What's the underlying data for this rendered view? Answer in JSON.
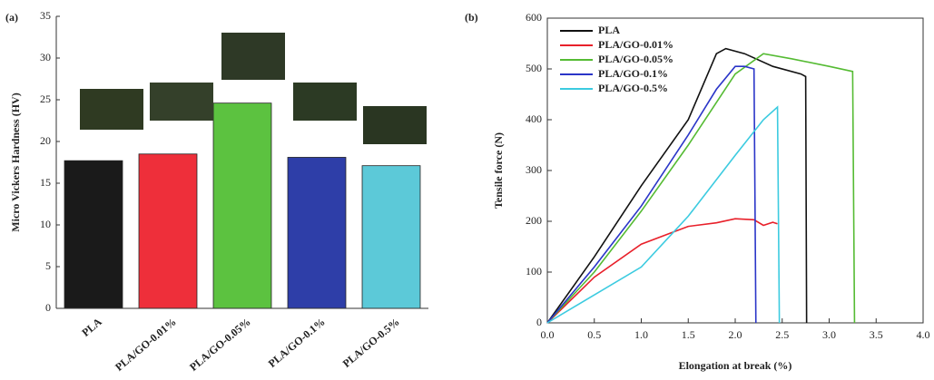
{
  "chart_data": [
    {
      "type": "bar",
      "panel": "(a)",
      "ylabel": "Micro Vickers Hardness (HV)",
      "categories": [
        "PLA",
        "PLA/GO-0.01%",
        "PLA/GO-0.05%",
        "PLA/GO-0.1%",
        "PLA/GO-0.5%"
      ],
      "values": [
        17.7,
        18.5,
        24.6,
        18.1,
        17.1
      ],
      "colors": [
        "#1a1a1a",
        "#ee2f3a",
        "#5cc240",
        "#2e3ea8",
        "#5cc9d8"
      ],
      "ylim": [
        0,
        35
      ],
      "yticks": [
        0,
        5,
        10,
        15,
        20,
        25,
        30,
        35
      ]
    },
    {
      "type": "line",
      "panel": "(b)",
      "xlabel": "Elongation at break (%)",
      "ylabel": "Tensile force (N)",
      "xlim": [
        0,
        4
      ],
      "xticks": [
        {
          "value": 0,
          "label": "0.0"
        },
        0.5,
        {
          "value": 1,
          "label": "1.0"
        },
        1.5,
        {
          "value": 2,
          "label": "2.0"
        },
        2.5,
        {
          "value": 3,
          "label": "3.0"
        },
        3.5,
        {
          "value": 4,
          "label": "4.0"
        }
      ],
      "ylim": [
        0,
        600
      ],
      "yticks": [
        0,
        100,
        200,
        300,
        400,
        500,
        600
      ],
      "legend": "upper left",
      "series": [
        {
          "name": "PLA",
          "color": "#111111",
          "x": [
            0,
            0.5,
            1,
            1.5,
            1.8,
            1.9,
            2.1,
            2.4,
            2.7,
            2.75,
            2.76
          ],
          "values": [
            0,
            130,
            270,
            400,
            530,
            540,
            530,
            505,
            490,
            485,
            0
          ]
        },
        {
          "name": "PLA/GO-0.01%",
          "color": "#e8202a",
          "x": [
            0,
            0.5,
            1,
            1.5,
            1.8,
            2.0,
            2.2,
            2.3,
            2.4,
            2.45
          ],
          "values": [
            0,
            90,
            155,
            190,
            197,
            205,
            203,
            192,
            198,
            195
          ]
        },
        {
          "name": "PLA/GO-0.05%",
          "color": "#55bb33",
          "x": [
            0,
            0.5,
            1,
            1.5,
            2.0,
            2.3,
            2.6,
            3.0,
            3.25,
            3.27
          ],
          "values": [
            0,
            100,
            220,
            350,
            490,
            530,
            520,
            505,
            495,
            0
          ]
        },
        {
          "name": "PLA/GO-0.1%",
          "color": "#2a35c8",
          "x": [
            0,
            0.5,
            1,
            1.5,
            1.8,
            2.0,
            2.1,
            2.2,
            2.22
          ],
          "values": [
            0,
            110,
            230,
            370,
            460,
            505,
            505,
            500,
            0
          ]
        },
        {
          "name": "PLA/GO-0.5%",
          "color": "#3ccbe0",
          "x": [
            0,
            0.5,
            1,
            1.5,
            2.0,
            2.3,
            2.45,
            2.47
          ],
          "values": [
            0,
            55,
            110,
            210,
            330,
            400,
            425,
            0
          ]
        }
      ]
    }
  ]
}
